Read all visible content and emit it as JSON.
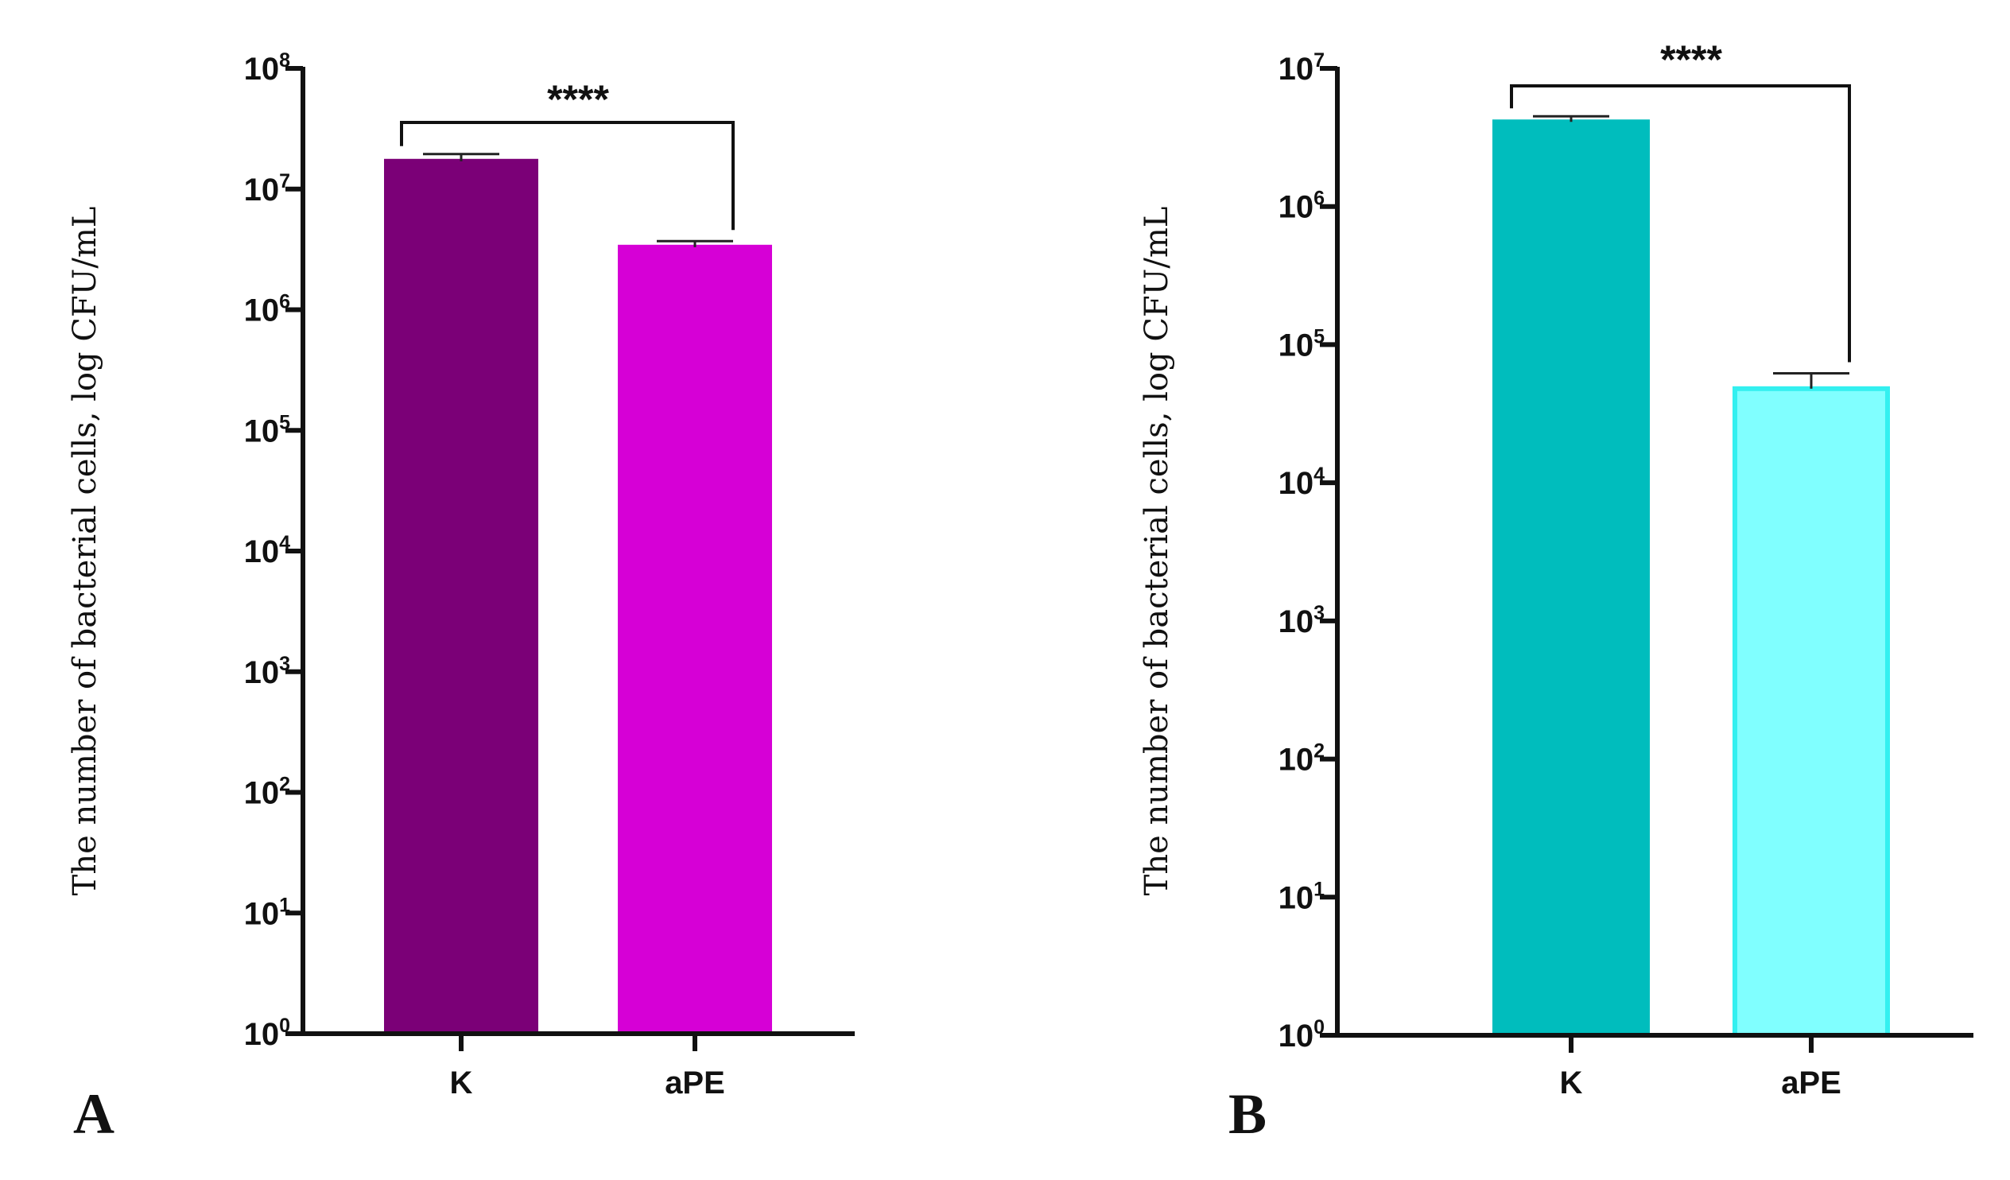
{
  "chart_data": [
    {
      "panel_label": "A",
      "type": "bar",
      "scale": "log10",
      "ylabel": "The number of bacterial cells, log CFU/mL",
      "ylim_exponents": [
        0,
        8
      ],
      "yticks": [
        {
          "base": "10",
          "exp": "0"
        },
        {
          "base": "10",
          "exp": "1"
        },
        {
          "base": "10",
          "exp": "2"
        },
        {
          "base": "10",
          "exp": "3"
        },
        {
          "base": "10",
          "exp": "4"
        },
        {
          "base": "10",
          "exp": "5"
        },
        {
          "base": "10",
          "exp": "6"
        },
        {
          "base": "10",
          "exp": "7"
        },
        {
          "base": "10",
          "exp": "8"
        }
      ],
      "categories": [
        "K",
        "aPE"
      ],
      "values": [
        17000000,
        3300000
      ],
      "error_upper": [
        19500000,
        3700000
      ],
      "colors": [
        "#7b0077",
        "#d600d6"
      ],
      "outline_colors": [
        "#7b0077",
        "#d600d6"
      ],
      "significance": "****",
      "grid": false
    },
    {
      "panel_label": "B",
      "type": "bar",
      "scale": "log10",
      "ylabel": "The number of bacterial cells, log CFU/mL",
      "ylim_exponents": [
        0,
        7
      ],
      "yticks": [
        {
          "base": "10",
          "exp": "0"
        },
        {
          "base": "10",
          "exp": "1"
        },
        {
          "base": "10",
          "exp": "2"
        },
        {
          "base": "10",
          "exp": "3"
        },
        {
          "base": "10",
          "exp": "4"
        },
        {
          "base": "10",
          "exp": "5"
        },
        {
          "base": "10",
          "exp": "6"
        },
        {
          "base": "10",
          "exp": "7"
        }
      ],
      "categories": [
        "K",
        "aPE"
      ],
      "values": [
        4100000,
        48000
      ],
      "error_upper": [
        4500000,
        62000
      ],
      "colors": [
        "#00bdbd",
        "#80ffff"
      ],
      "outline_colors": [
        "#00bdbd",
        "#33f0f0"
      ],
      "significance": "****",
      "grid": false
    }
  ]
}
